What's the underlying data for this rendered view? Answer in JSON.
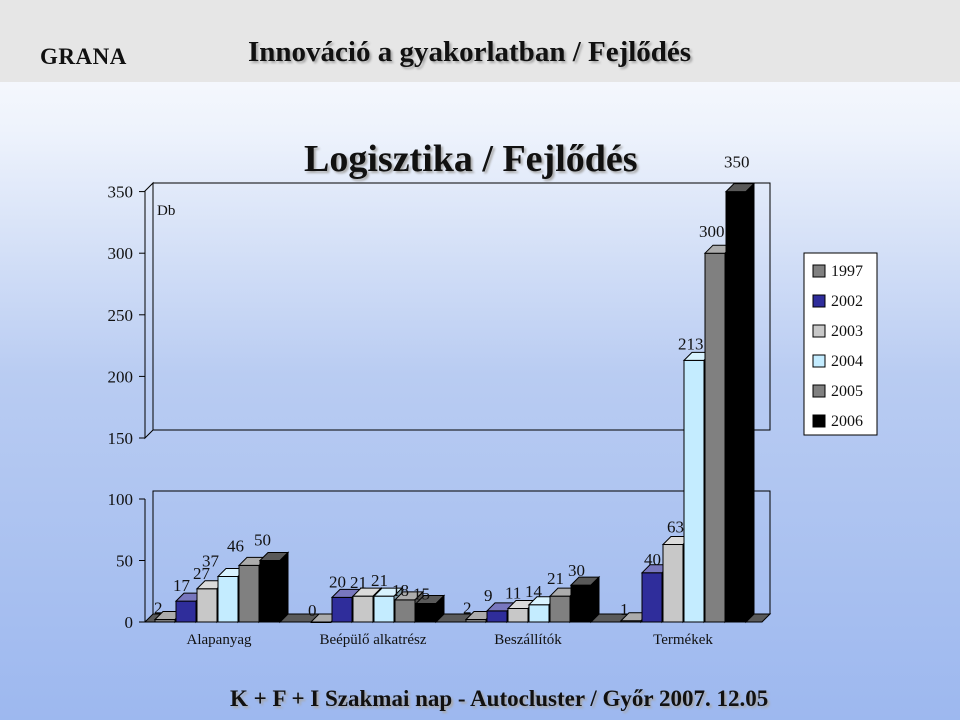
{
  "header": {
    "logo": "GRANA",
    "title": "Innováció a gyakorlatban / Fejlődés"
  },
  "footer": "K + F + I Szakmai nap  -  Autocluster  /  Győr 2007. 12.05",
  "chart_data": {
    "type": "bar",
    "title": "Logisztika / Fejlődés",
    "ylabel": "Db",
    "xlabel": "",
    "categories": [
      "Alapanyag",
      "Beépülő alkatrész",
      "Beszállítók",
      "Termékek"
    ],
    "series": [
      {
        "name": "1997",
        "color": "#808080",
        "values": [
          2,
          0,
          2,
          1
        ]
      },
      {
        "name": "2002",
        "color": "#2f2d9b",
        "values": [
          17,
          20,
          9,
          40
        ]
      },
      {
        "name": "2003",
        "color": "#c8c8c8",
        "values": [
          27,
          21,
          11,
          63
        ]
      },
      {
        "name": "2004",
        "color": "#c4ecff",
        "values": [
          37,
          21,
          14,
          213
        ]
      },
      {
        "name": "2005",
        "color": "#808080",
        "values": [
          46,
          18,
          21,
          300
        ]
      },
      {
        "name": "2006",
        "color": "#000000",
        "values": [
          50,
          15,
          30,
          350
        ]
      }
    ],
    "value_labels": [
      [
        "2",
        "17",
        "27",
        "37",
        "46",
        "50"
      ],
      [
        "0",
        "20",
        "21",
        "21",
        "18",
        "15"
      ],
      [
        "2",
        "9",
        "11",
        "14",
        "21",
        "30"
      ],
      [
        "1",
        "40",
        "63",
        "213",
        "300",
        "350"
      ]
    ],
    "y_ticks": [
      "0",
      "50",
      "100",
      "150",
      "200",
      "250",
      "300",
      "350"
    ],
    "axis_break": true,
    "lower_segment": [
      0,
      100
    ],
    "upper_segment": [
      150,
      350
    ],
    "grid": false,
    "legend_position": "right"
  }
}
